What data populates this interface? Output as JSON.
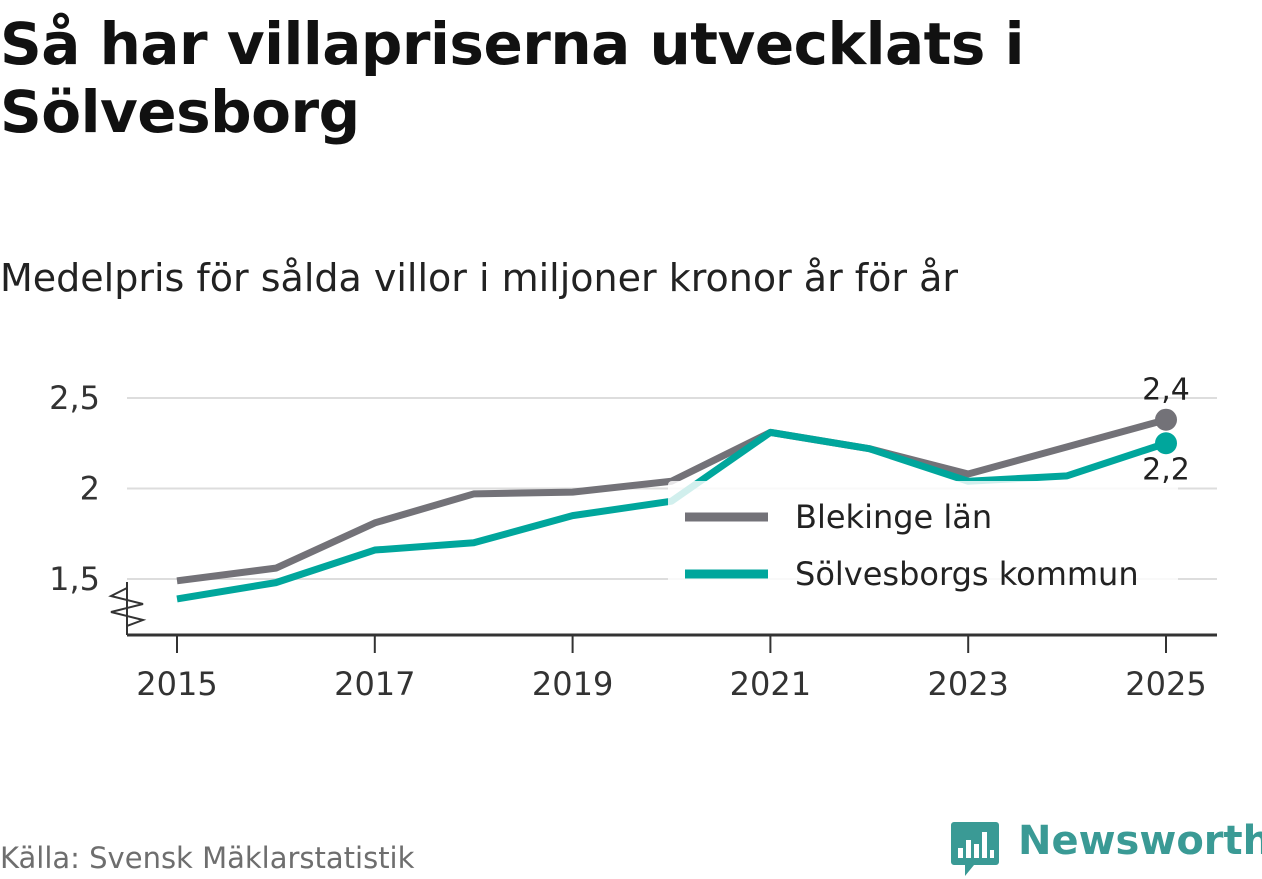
{
  "header": {
    "title": "Så har villapriserna utvecklats i Sölvesborg",
    "subtitle": "Medelpris för sålda villor i miljoner kronor år för år"
  },
  "footer": {
    "source": "Källa: Svensk Mäklarstatistik",
    "brand": "Newsworthy"
  },
  "colors": {
    "blekinge": "#737278",
    "solvesborg": "#00a69c",
    "grid": "#dddddd",
    "brand": "#3a9a95"
  },
  "chart_data": {
    "type": "line",
    "title": "Så har villapriserna utvecklats i Sölvesborg",
    "subtitle": "Medelpris för sålda villor i miljoner kronor år för år",
    "xlabel": "",
    "ylabel": "",
    "x": [
      2015,
      2016,
      2017,
      2018,
      2019,
      2020,
      2021,
      2022,
      2023,
      2024,
      2025
    ],
    "xticks": [
      "2015",
      "2017",
      "2019",
      "2021",
      "2023",
      "2025"
    ],
    "yticks": [
      {
        "value": 1.5,
        "label": "1,5"
      },
      {
        "value": 2.0,
        "label": "2"
      },
      {
        "value": 2.5,
        "label": "2,5"
      }
    ],
    "ylim": [
      1.2,
      2.6
    ],
    "xlim": [
      2014.75,
      2025.25
    ],
    "grid": true,
    "axis_break": true,
    "legend_position": "right-middle",
    "series": [
      {
        "name": "Blekinge län",
        "color": "#737278",
        "values": [
          1.49,
          1.56,
          1.81,
          1.97,
          1.98,
          2.04,
          2.31,
          2.22,
          2.08,
          2.23,
          2.38
        ],
        "end_label": "2,4",
        "end_label_position": "above"
      },
      {
        "name": "Sölvesborgs kommun",
        "color": "#00a69c",
        "values": [
          1.39,
          1.48,
          1.66,
          1.7,
          1.85,
          1.93,
          2.31,
          2.22,
          2.04,
          2.07,
          2.25
        ],
        "end_label": "2,2",
        "end_label_position": "below"
      }
    ]
  }
}
